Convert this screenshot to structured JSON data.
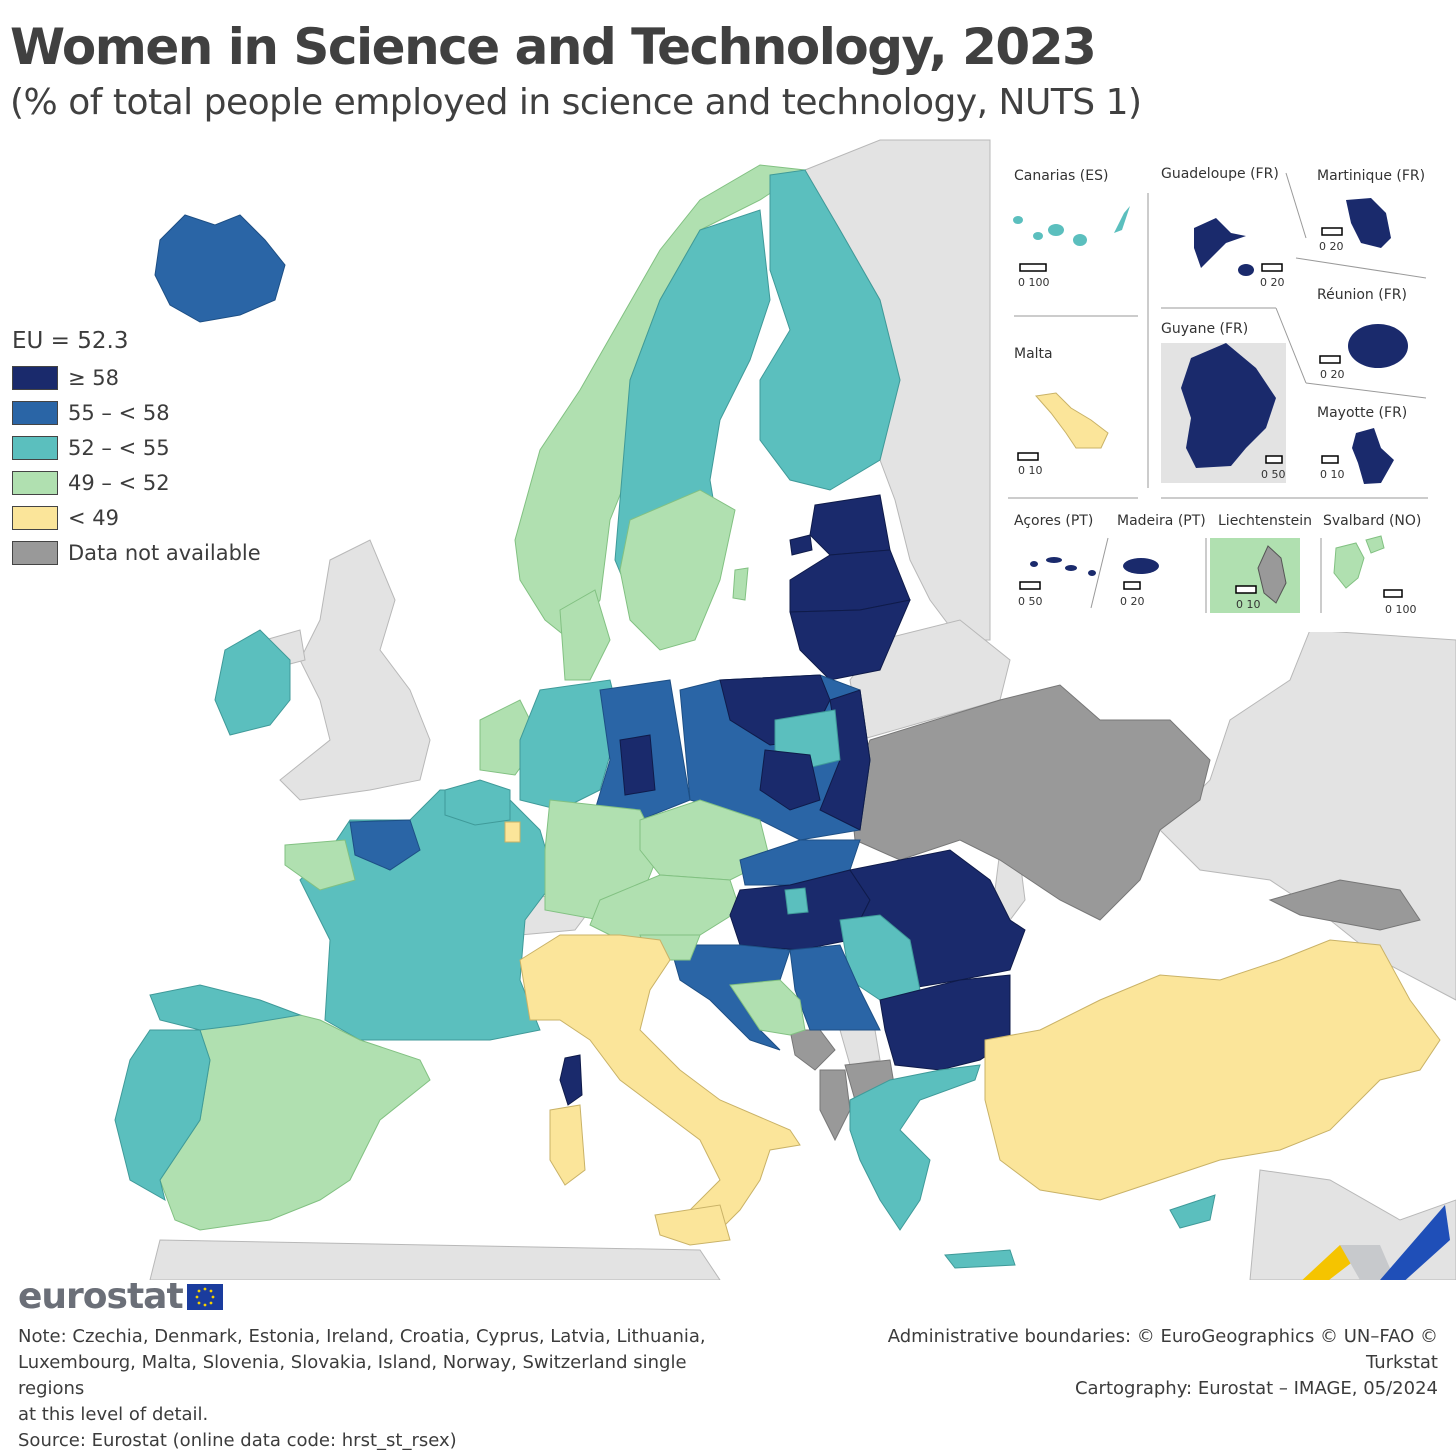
{
  "header": {
    "title": "Women in Science and Technology, 2023",
    "subtitle": "(% of total people employed in science and technology, NUTS 1)"
  },
  "legend": {
    "title": "EU = 52.3",
    "classes": [
      {
        "label": "≥ 58",
        "color": "#1a2a6c"
      },
      {
        "label": "55 – < 58",
        "color": "#2a65a6"
      },
      {
        "label": "52 – < 55",
        "color": "#5bbfbe"
      },
      {
        "label": "49 – < 52",
        "color": "#b0e0b0"
      },
      {
        "label": "< 49",
        "color": "#fbe59a"
      },
      {
        "label": "Data not available",
        "color": "#999999"
      }
    ]
  },
  "map": {
    "non_covered_color": "#e3e3e3",
    "sea_color": "#ffffff",
    "regions": [
      {
        "name": "Iceland",
        "class": "55 – < 58"
      },
      {
        "name": "Ireland",
        "class": "52 – < 55"
      },
      {
        "name": "Norway",
        "class": "49 – < 52"
      },
      {
        "name": "Sweden",
        "class": "52 – < 55"
      },
      {
        "name": "Finland",
        "class": "52 – < 55"
      },
      {
        "name": "Estonia",
        "class": "≥ 58"
      },
      {
        "name": "Latvia",
        "class": "≥ 58"
      },
      {
        "name": "Lithuania",
        "class": "≥ 58"
      },
      {
        "name": "Denmark",
        "class": "49 – < 52"
      },
      {
        "name": "France",
        "class": "52 – < 55"
      },
      {
        "name": "Spain",
        "class": "49 – < 52"
      },
      {
        "name": "Portugal",
        "class": "52 – < 55"
      },
      {
        "name": "Italy",
        "class": "< 49"
      },
      {
        "name": "Corsica",
        "class": "≥ 58"
      },
      {
        "name": "Germany",
        "class": "49 – < 52"
      },
      {
        "name": "Poland",
        "class": "55 – < 58"
      },
      {
        "name": "Czechia",
        "class": "49 – < 52"
      },
      {
        "name": "Austria",
        "class": "49 – < 52"
      },
      {
        "name": "Hungary",
        "class": "≥ 58"
      },
      {
        "name": "Romania",
        "class": "≥ 58"
      },
      {
        "name": "Bulgaria",
        "class": "≥ 58"
      },
      {
        "name": "Serbia",
        "class": "55 – < 58"
      },
      {
        "name": "Croatia",
        "class": "55 – < 58"
      },
      {
        "name": "Bosnia and Herzegovina",
        "class": "49 – < 52"
      },
      {
        "name": "Greece",
        "class": "52 – < 55"
      },
      {
        "name": "Türkiye",
        "class": "< 49"
      },
      {
        "name": "Cyprus",
        "class": "52 – < 55"
      },
      {
        "name": "Ukraine",
        "class": "Data not available"
      },
      {
        "name": "Montenegro",
        "class": "Data not available"
      },
      {
        "name": "Albania",
        "class": "Data not available"
      },
      {
        "name": "Georgia",
        "class": "Data not available"
      }
    ]
  },
  "insets": [
    {
      "label": "Canarias (ES)",
      "scale": "0   100"
    },
    {
      "label": "Guadeloupe (FR)",
      "scale": "0   20"
    },
    {
      "label": "Martinique (FR)",
      "scale": "0   20"
    },
    {
      "label": "Réunion (FR)",
      "scale": "0   20"
    },
    {
      "label": "Malta",
      "scale": "0   10"
    },
    {
      "label": "Guyane (FR)",
      "scale": "0 50"
    },
    {
      "label": "Mayotte (FR)",
      "scale": "0  10"
    },
    {
      "label": "Açores (PT)",
      "scale": "0   50"
    },
    {
      "label": "Madeira (PT)",
      "scale": "0   20"
    },
    {
      "label": "Liechtenstein",
      "scale": "0   10"
    },
    {
      "label": "Svalbard (NO)",
      "scale": "0 100"
    }
  ],
  "footer": {
    "brand": "eurostat",
    "note_lines": [
      "Note: Czechia, Denmark, Estonia, Ireland, Croatia, Cyprus, Latvia, Lithuania,",
      "Luxembourg, Malta, Slovenia, Slovakia, Island, Norway, Switzerland single regions",
      "at this level of detail.",
      "Source: Eurostat (online data code: hrst_st_rsex)"
    ],
    "credit_lines": [
      "Administrative boundaries: © EuroGeographics © UN–FAO © Turkstat",
      "Cartography: Eurostat – IMAGE, 05/2024"
    ]
  }
}
